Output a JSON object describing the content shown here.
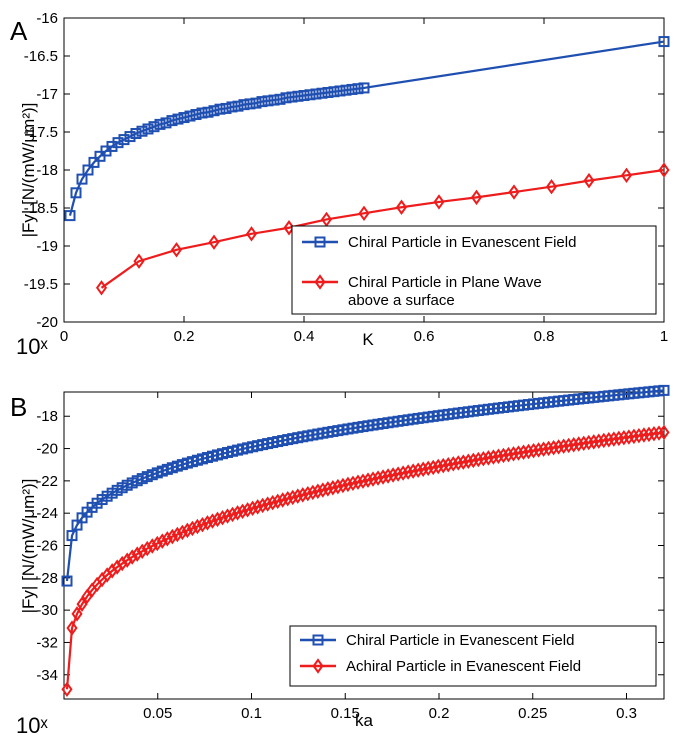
{
  "chart_data": [
    {
      "panel": "A",
      "type": "line",
      "xlabel": "K",
      "ylabel": "|Fy| [N/(mW/μm²)]",
      "scale_note": "10ˣ",
      "xlim": [
        0,
        1
      ],
      "ylim": [
        -20,
        -16
      ],
      "xticks": [
        0,
        0.2,
        0.4,
        0.6,
        0.8,
        1
      ],
      "xtick_labels": [
        "0",
        "0.2",
        "0.4",
        "0.6",
        "0.8",
        "1"
      ],
      "yticks": [
        -20,
        -19.5,
        -19,
        -18.5,
        -18,
        -17.5,
        -17,
        -16.5,
        -16
      ],
      "ytick_labels": [
        "-20",
        "-19.5",
        "-19",
        "-18.5",
        "-18",
        "-17.5",
        "-17",
        "-16.5",
        "-16"
      ],
      "legend_position": "bottom-right",
      "series": [
        {
          "name": "Chiral Particle in Evanescent Field",
          "color": "#1f4fb0",
          "marker": "square",
          "x": [
            0.01,
            0.02,
            0.03,
            0.04,
            0.05,
            0.06,
            0.07,
            0.08,
            0.09,
            0.1,
            0.11,
            0.12,
            0.13,
            0.14,
            0.15,
            0.16,
            0.17,
            0.18,
            0.19,
            0.2,
            0.21,
            0.22,
            0.23,
            0.24,
            0.25,
            0.26,
            0.27,
            0.28,
            0.29,
            0.3,
            0.31,
            0.32,
            0.33,
            0.34,
            0.35,
            0.36,
            0.37,
            0.38,
            0.39,
            0.4,
            0.41,
            0.42,
            0.43,
            0.44,
            0.45,
            0.46,
            0.47,
            0.48,
            0.49,
            0.5,
            1.0
          ],
          "y": [
            -18.6,
            -18.3,
            -18.12,
            -18.0,
            -17.9,
            -17.82,
            -17.75,
            -17.69,
            -17.64,
            -17.6,
            -17.56,
            -17.52,
            -17.49,
            -17.46,
            -17.43,
            -17.4,
            -17.38,
            -17.35,
            -17.33,
            -17.31,
            -17.29,
            -17.27,
            -17.25,
            -17.24,
            -17.22,
            -17.2,
            -17.19,
            -17.17,
            -17.16,
            -17.14,
            -17.13,
            -17.12,
            -17.1,
            -17.09,
            -17.08,
            -17.07,
            -17.05,
            -17.04,
            -17.03,
            -17.02,
            -17.01,
            -17.0,
            -16.99,
            -16.98,
            -16.97,
            -16.96,
            -16.95,
            -16.94,
            -16.93,
            -16.92,
            -16.31
          ]
        },
        {
          "name": "Chiral Particle in Plane Wave above a surface",
          "color": "#ee1c1c",
          "marker": "diamond",
          "x": [
            0.0625,
            0.125,
            0.1875,
            0.25,
            0.3125,
            0.375,
            0.4375,
            0.5,
            0.5625,
            0.625,
            0.6875,
            0.75,
            0.8125,
            0.875,
            0.9375,
            1.0
          ],
          "y": [
            -19.55,
            -19.2,
            -19.05,
            -18.95,
            -18.84,
            -18.76,
            -18.65,
            -18.57,
            -18.49,
            -18.42,
            -18.36,
            -18.29,
            -18.22,
            -18.14,
            -18.07,
            -18.0
          ]
        }
      ]
    },
    {
      "panel": "B",
      "type": "line",
      "xlabel": "ka",
      "ylabel": "|Fy| [N/(mW/μm²)]",
      "scale_note": "10ˣ",
      "xlim": [
        0,
        0.32
      ],
      "ylim": [
        -35.5,
        -16.5
      ],
      "xticks": [
        0.05,
        0.1,
        0.15,
        0.2,
        0.25,
        0.3
      ],
      "xtick_labels": [
        "0.05",
        "0.1",
        "0.15",
        "0.2",
        "0.25",
        "0.3"
      ],
      "yticks": [
        -34,
        -32,
        -30,
        -28,
        -26,
        -24,
        -22,
        -20,
        -18
      ],
      "ytick_labels": [
        "-34",
        "-32",
        "-30",
        "-28",
        "-26",
        "-24",
        "-22",
        "-20",
        "-18"
      ],
      "legend_position": "bottom-right",
      "curves": [
        {
          "x0": 0.0016,
          "x1": 0.32,
          "y0": -28.2,
          "y1": -16.4,
          "exponent": 0.3,
          "count": 120
        },
        {
          "x0": 0.0016,
          "x1": 0.32,
          "y0": -34.9,
          "y1": -19.0,
          "exponent": 0.3,
          "count": 120
        }
      ],
      "series": [
        {
          "name": "Chiral Particle in Evanescent Field",
          "color": "#1f4fb0",
          "marker": "square"
        },
        {
          "name": "Achiral Particle in Evanescent Field",
          "color": "#ee1c1c",
          "marker": "diamond"
        }
      ]
    }
  ]
}
